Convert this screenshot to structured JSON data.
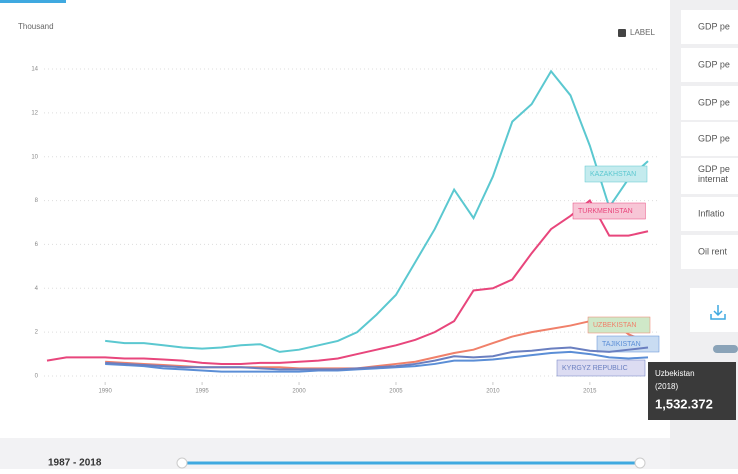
{
  "chart_data": {
    "type": "line",
    "y_label": "Thousand",
    "toggle_label": "LABEL",
    "x": [
      1987,
      1988,
      1989,
      1990,
      1991,
      1992,
      1993,
      1994,
      1995,
      1996,
      1997,
      1998,
      1999,
      2000,
      2001,
      2002,
      2003,
      2004,
      2005,
      2006,
      2007,
      2008,
      2009,
      2010,
      2011,
      2012,
      2013,
      2014,
      2015,
      2016,
      2017,
      2018
    ],
    "xlim": [
      1987,
      2018
    ],
    "xticks": [
      1990,
      1995,
      2000,
      2005,
      2010,
      2015
    ],
    "ylim": [
      0,
      14
    ],
    "yticks": [
      0,
      2,
      4,
      6,
      8,
      10,
      12,
      14
    ],
    "grid": true,
    "series": [
      {
        "name": "KAZAKHSTAN",
        "color": "#5bc8d0",
        "label_bg": "#c4ebee",
        "values": [
          null,
          null,
          null,
          1.6,
          1.5,
          1.5,
          1.4,
          1.3,
          1.25,
          1.3,
          1.4,
          1.45,
          1.1,
          1.2,
          1.4,
          1.6,
          2.0,
          2.8,
          3.7,
          5.2,
          6.7,
          8.5,
          7.2,
          9.1,
          11.6,
          12.4,
          13.9,
          12.8,
          10.5,
          7.7,
          9.0,
          9.8
        ]
      },
      {
        "name": "TURKMENISTAN",
        "color": "#e8467c",
        "label_bg": "#f7c6d6",
        "values": [
          0.7,
          0.85,
          0.85,
          0.85,
          0.8,
          0.8,
          0.75,
          0.7,
          0.6,
          0.55,
          0.55,
          0.6,
          0.6,
          0.65,
          0.7,
          0.8,
          1.0,
          1.2,
          1.4,
          1.65,
          2.0,
          2.5,
          3.9,
          4.0,
          4.4,
          5.6,
          6.7,
          7.3,
          8.0,
          6.4,
          6.4,
          6.6
        ]
      },
      {
        "name": "UZBEKISTAN",
        "color": "#f0806a",
        "label_bg": "#cfe8c8",
        "values": [
          null,
          null,
          null,
          0.65,
          0.6,
          0.55,
          0.5,
          0.45,
          0.4,
          0.4,
          0.4,
          0.4,
          0.4,
          0.35,
          0.35,
          0.35,
          0.35,
          0.45,
          0.55,
          0.65,
          0.85,
          1.05,
          1.2,
          1.5,
          1.8,
          2.0,
          2.15,
          2.3,
          2.5,
          2.6,
          1.9,
          1.532372
        ]
      },
      {
        "name": "TAJIKISTAN",
        "color": "#5b8ed6",
        "label_bg": "#c9dcf2",
        "values": [
          null,
          null,
          null,
          0.55,
          0.5,
          0.45,
          0.35,
          0.3,
          0.25,
          0.2,
          0.2,
          0.2,
          0.2,
          0.2,
          0.25,
          0.25,
          0.3,
          0.35,
          0.4,
          0.45,
          0.55,
          0.7,
          0.7,
          0.75,
          0.85,
          0.95,
          1.05,
          1.1,
          1.0,
          0.85,
          0.8,
          0.85
        ]
      },
      {
        "name": "KYRGYZ REPUBLIC",
        "color": "#6a7fc0",
        "label_bg": "#dcdcf2",
        "values": [
          null,
          null,
          null,
          0.6,
          0.55,
          0.5,
          0.45,
          0.4,
          0.4,
          0.4,
          0.4,
          0.35,
          0.3,
          0.3,
          0.3,
          0.3,
          0.35,
          0.4,
          0.45,
          0.55,
          0.7,
          0.9,
          0.85,
          0.9,
          1.1,
          1.15,
          1.25,
          1.3,
          1.15,
          1.1,
          1.2,
          1.3
        ]
      }
    ],
    "tooltip": {
      "name": "Uzbekistan",
      "year": "(2018)",
      "value": "1,532.372"
    }
  },
  "sidebar": {
    "items": [
      "GDP pe",
      "GDP pe",
      "GDP pe",
      "GDP pe",
      "GDP pe\ninternat",
      "Inflatio",
      "Oil rent"
    ]
  },
  "footer": {
    "range": "1987 - 2018"
  }
}
